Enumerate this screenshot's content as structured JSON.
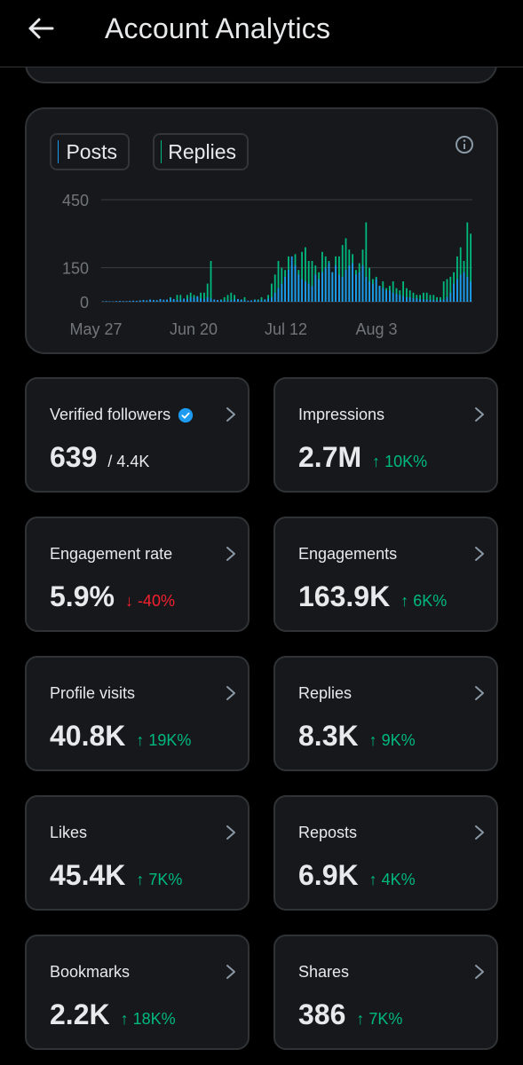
{
  "header": {
    "title": "Account Analytics"
  },
  "chart_data": {
    "type": "bar",
    "legend": [
      "Posts",
      "Replies"
    ],
    "colors": {
      "posts": "#1d9bf0",
      "replies": "#00ba7c"
    },
    "yticks": [
      "450",
      "150",
      "0"
    ],
    "ytick_values": [
      450,
      150,
      0
    ],
    "xticks": [
      "May 27",
      "Jun 20",
      "Jul 12",
      "Aug 3"
    ],
    "ylim": [
      0,
      450
    ],
    "grid": true,
    "series": [
      {
        "name": "Posts",
        "values": [
          0,
          0,
          0,
          0,
          0,
          0,
          0,
          0,
          0,
          0,
          0,
          0,
          0,
          0,
          0,
          0,
          0,
          0,
          0,
          0,
          0,
          0,
          0,
          0,
          0,
          0,
          0,
          0,
          0,
          0,
          0,
          0,
          0,
          0,
          0,
          0,
          0,
          0,
          0,
          0,
          0,
          0,
          0,
          0,
          0,
          0,
          0,
          0,
          0,
          0,
          0,
          0,
          0,
          0,
          0,
          0,
          0,
          0,
          0,
          0,
          0,
          0,
          0,
          0,
          0,
          0,
          0,
          0,
          0,
          0,
          0,
          0,
          0,
          0,
          0,
          0,
          0,
          0,
          0,
          0,
          0,
          0,
          0,
          0,
          0,
          0,
          0,
          0,
          0,
          0,
          0,
          0,
          0,
          0,
          0,
          0,
          0,
          0,
          0,
          0,
          0,
          0,
          0,
          0,
          0,
          0,
          0,
          0,
          0,
          0,
          0,
          0,
          0,
          0,
          0,
          0,
          0,
          0,
          0,
          0,
          0,
          0,
          0,
          0,
          0,
          0,
          0,
          0,
          0,
          0,
          0,
          0,
          0,
          0,
          0,
          0,
          0,
          0,
          0,
          0,
          0,
          0,
          0,
          0,
          0,
          0,
          0,
          0,
          0,
          0,
          0,
          0,
          0,
          0,
          0,
          0,
          0,
          0,
          0,
          0,
          0,
          0,
          0,
          0,
          0,
          0,
          0,
          0,
          0,
          0,
          0,
          0,
          0,
          0,
          0,
          0,
          0,
          0,
          0,
          0,
          0,
          0,
          0,
          0,
          0,
          0,
          0,
          0,
          0,
          0,
          0,
          0,
          0,
          0,
          0,
          0,
          0,
          0,
          0,
          0,
          0,
          0,
          0,
          0,
          0,
          0,
          0,
          0,
          0,
          0,
          0,
          0,
          0,
          0,
          0
        ]
      },
      {
        "name": "Replies",
        "values": []
      }
    ],
    "posts_bars": [
      2,
      3,
      2,
      2,
      3,
      4,
      3,
      3,
      4,
      5,
      4,
      6,
      8,
      6,
      10,
      8,
      7,
      12,
      9,
      10,
      15,
      12,
      8,
      10,
      14,
      12,
      20,
      18,
      25,
      15,
      12,
      20,
      14,
      10,
      8,
      7,
      6,
      5,
      8,
      10,
      12,
      9,
      6,
      5,
      6,
      8,
      6,
      7,
      10,
      14,
      20,
      40,
      60,
      80,
      110,
      140,
      200,
      160,
      120,
      100,
      90,
      80,
      70,
      120,
      100,
      130,
      150,
      170,
      130,
      160,
      120,
      110,
      140,
      160,
      170,
      120,
      130,
      160,
      110,
      90,
      80,
      100,
      70,
      60,
      50,
      50,
      40,
      35,
      30,
      25,
      20,
      20,
      15,
      15,
      12,
      10,
      10,
      8,
      8,
      6,
      8,
      10,
      20,
      40,
      80,
      100,
      120,
      130,
      110,
      90
    ],
    "replies_bars": [
      0,
      0,
      0,
      0,
      0,
      0,
      0,
      0,
      0,
      0,
      0,
      0,
      0,
      0,
      2,
      3,
      2,
      0,
      0,
      3,
      20,
      10,
      30,
      30,
      0,
      30,
      40,
      30,
      20,
      40,
      40,
      80,
      180,
      0,
      0,
      10,
      20,
      30,
      40,
      30,
      10,
      10,
      20,
      0,
      0,
      10,
      10,
      20,
      10,
      30,
      80,
      120,
      180,
      150,
      140,
      200,
      160,
      210,
      140,
      220,
      240,
      180,
      180,
      160,
      130,
      220,
      200,
      180,
      130,
      200,
      200,
      250,
      280,
      230,
      210,
      140,
      170,
      230,
      350,
      150,
      100,
      110,
      70,
      90,
      60,
      70,
      90,
      60,
      50,
      90,
      60,
      50,
      40,
      30,
      30,
      40,
      40,
      30,
      30,
      20,
      20,
      90,
      100,
      110,
      130,
      200,
      240,
      180,
      350,
      300
    ]
  },
  "stats": [
    {
      "label": "Verified followers",
      "value": "639",
      "delta": "/ 4.4K",
      "dir": "neutral",
      "verified": true
    },
    {
      "label": "Impressions",
      "value": "2.7M",
      "delta": "↑ 10K%",
      "dir": "up"
    },
    {
      "label": "Engagement rate",
      "value": "5.9%",
      "delta": "↓ -40%",
      "dir": "down"
    },
    {
      "label": "Engagements",
      "value": "163.9K",
      "delta": "↑ 6K%",
      "dir": "up"
    },
    {
      "label": "Profile visits",
      "value": "40.8K",
      "delta": "↑ 19K%",
      "dir": "up"
    },
    {
      "label": "Replies",
      "value": "8.3K",
      "delta": "↑ 9K%",
      "dir": "up"
    },
    {
      "label": "Likes",
      "value": "45.4K",
      "delta": "↑ 7K%",
      "dir": "up"
    },
    {
      "label": "Reposts",
      "value": "6.9K",
      "delta": "↑ 4K%",
      "dir": "up"
    },
    {
      "label": "Bookmarks",
      "value": "2.2K",
      "delta": "↑ 18K%",
      "dir": "up"
    },
    {
      "label": "Shares",
      "value": "386",
      "delta": "↑ 7K%",
      "dir": "up"
    }
  ]
}
